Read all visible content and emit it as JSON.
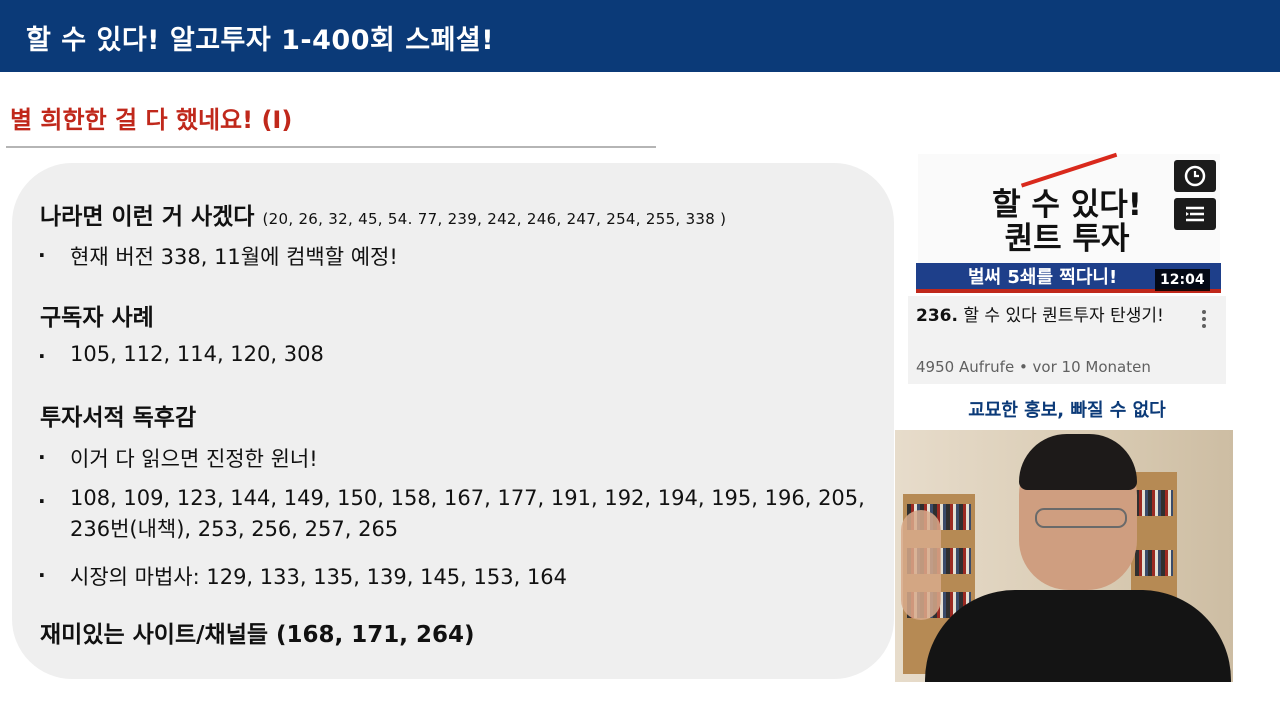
{
  "header": {
    "title": "할 수 있다! 알고투자 1-400회 스페셜!"
  },
  "subtitle": "별 희한한 걸 다 했네요! (I)",
  "panel": {
    "sections": [
      {
        "heading": "나라면 이런 거 사겠다",
        "heading_nums": "(20, 26, 32, 45, 54. 77, 239, 242, 246, 247, 254, 255, 338 )"
      },
      {
        "heading": "구독자 사례"
      },
      {
        "heading": "투자서적 독후감"
      },
      {
        "heading": "재미있는 사이트/채널들 (168, 171, 264)"
      }
    ],
    "bullets": [
      "현재 버전 338, 11월에 컴백할 예정!",
      "105, 112, 114, 120, 308",
      "이거 다 읽으면 진정한 윈너!",
      "108, 109, 123, 144, 149, 150, 158, 167, 177, 191, 192, 194, 195, 196, 205, 236번(내책), 253, 256, 257, 265",
      "시장의 마법사: 129, 133, 135, 139, 145, 153, 164"
    ],
    "bullet_glyph": "·"
  },
  "video_card": {
    "thumbnail_title": "할 수 있다!\n퀀트 투자",
    "banner": "벌써 5쇄를 찍다니!",
    "duration": "12:04",
    "number": "236.",
    "title": "할 수 있다 퀀트투자 탄생기!",
    "meta": "4950 Aufrufe • vor 10 Monaten",
    "icons": [
      "clock-icon",
      "playlist-add-icon",
      "more-vert-icon"
    ]
  },
  "caption": "교묘한 홍보, 빠질 수 없다",
  "colors": {
    "header_bg": "#0b3a78",
    "subtitle": "#c0281b",
    "panel_bg": "#efefef",
    "caption": "#0b3a78"
  }
}
